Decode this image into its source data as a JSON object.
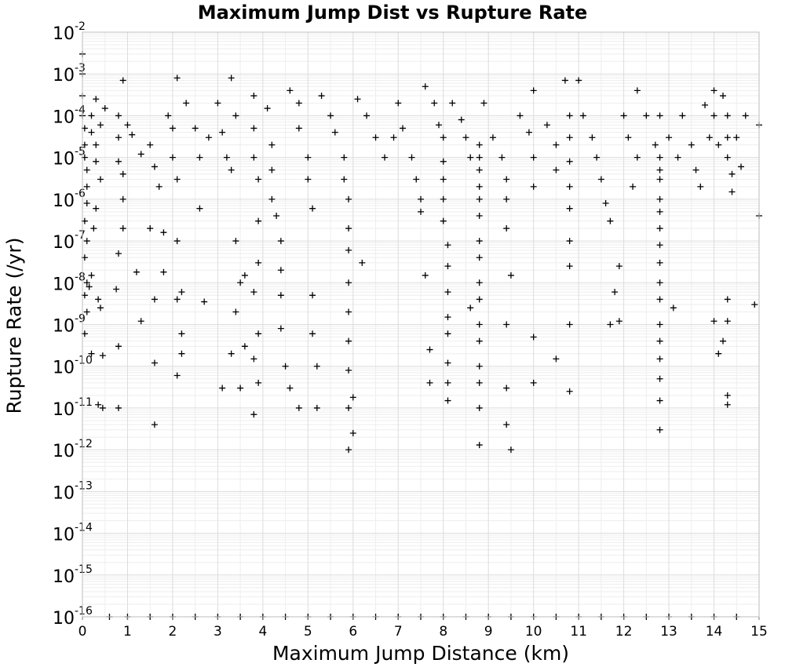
{
  "chart_data": {
    "type": "scatter",
    "title": "Maximum Jump Dist vs Rupture Rate",
    "xlabel": "Maximum Jump Distance (km)",
    "ylabel": "Rupture Rate (/yr)",
    "xlim": [
      0,
      15
    ],
    "ylim": [
      1e-16,
      0.01
    ],
    "yscale": "log",
    "grid": true,
    "marker": "plus",
    "marker_color": "#000000",
    "xticks": [
      "0",
      "1",
      "2",
      "3",
      "4",
      "5",
      "6",
      "7",
      "8",
      "9",
      "10",
      "11",
      "12",
      "13",
      "14",
      "15"
    ],
    "yticks": [
      {
        "base": "10",
        "exp": "-2"
      },
      {
        "base": "10",
        "exp": "-3"
      },
      {
        "base": "10",
        "exp": "-4"
      },
      {
        "base": "10",
        "exp": "-5"
      },
      {
        "base": "10",
        "exp": "-6"
      },
      {
        "base": "10",
        "exp": "-7"
      },
      {
        "base": "10",
        "exp": "-8"
      },
      {
        "base": "10",
        "exp": "-9"
      },
      {
        "base": "10",
        "exp": "-10"
      },
      {
        "base": "10",
        "exp": "-11"
      },
      {
        "base": "10",
        "exp": "-12"
      },
      {
        "base": "10",
        "exp": "-13"
      },
      {
        "base": "10",
        "exp": "-14"
      },
      {
        "base": "10",
        "exp": "-15"
      },
      {
        "base": "10",
        "exp": "-16"
      }
    ],
    "points": [
      [
        0.0,
        0.003
      ],
      [
        0.0,
        0.001
      ],
      [
        0.0,
        0.0003
      ],
      [
        0.0,
        0.0001
      ],
      [
        0.05,
        5e-05
      ],
      [
        0.05,
        2e-05
      ],
      [
        0.05,
        1e-05
      ],
      [
        0.1,
        5e-06
      ],
      [
        0.1,
        2e-06
      ],
      [
        0.1,
        8e-07
      ],
      [
        0.05,
        3e-07
      ],
      [
        0.1,
        1e-07
      ],
      [
        0.05,
        4e-08
      ],
      [
        0.1,
        1e-08
      ],
      [
        0.05,
        5e-09
      ],
      [
        0.1,
        2e-09
      ],
      [
        0.05,
        6e-10
      ],
      [
        0.2,
        2e-10
      ],
      [
        0.35,
        1.2e-11
      ],
      [
        0.45,
        1e-11
      ],
      [
        0.8,
        1e-11
      ],
      [
        0.2,
        4e-05
      ],
      [
        0.3,
        8e-06
      ],
      [
        0.3,
        2e-05
      ],
      [
        0.4,
        6e-05
      ],
      [
        0.2,
        0.0001
      ],
      [
        0.3,
        0.00025
      ],
      [
        0.5,
        0.00015
      ],
      [
        0.4,
        3e-06
      ],
      [
        0.3,
        6e-07
      ],
      [
        0.25,
        2e-07
      ],
      [
        0.2,
        1.5e-08
      ],
      [
        0.35,
        4e-09
      ],
      [
        0.4,
        2.5e-09
      ],
      [
        0.45,
        1.8e-10
      ],
      [
        0.15,
        8e-09
      ],
      [
        0.8,
        3e-10
      ],
      [
        0.9,
        0.0007
      ],
      [
        0.8,
        0.0001
      ],
      [
        0.8,
        3e-05
      ],
      [
        0.8,
        8e-06
      ],
      [
        0.9,
        4e-06
      ],
      [
        0.9,
        1e-06
      ],
      [
        0.9,
        2e-07
      ],
      [
        0.8,
        5e-08
      ],
      [
        0.75,
        7e-09
      ],
      [
        1.0,
        6e-05
      ],
      [
        1.1,
        3.5e-05
      ],
      [
        1.3,
        1.2e-05
      ],
      [
        1.2,
        1.8e-08
      ],
      [
        1.3,
        1.2e-09
      ],
      [
        1.5,
        2e-05
      ],
      [
        1.6,
        6e-06
      ],
      [
        1.7,
        2e-06
      ],
      [
        1.5,
        2e-07
      ],
      [
        1.6,
        4e-09
      ],
      [
        1.6,
        1.2e-10
      ],
      [
        1.6,
        4e-12
      ],
      [
        1.8,
        1.6e-07
      ],
      [
        1.8,
        1.8e-08
      ],
      [
        1.9,
        0.0001
      ],
      [
        2.0,
        5e-05
      ],
      [
        2.0,
        1e-05
      ],
      [
        2.1,
        3e-06
      ],
      [
        2.1,
        1e-07
      ],
      [
        2.2,
        6e-09
      ],
      [
        2.1,
        4e-09
      ],
      [
        2.2,
        6e-10
      ],
      [
        2.2,
        2e-10
      ],
      [
        2.1,
        6e-11
      ],
      [
        2.1,
        0.0008
      ],
      [
        2.3,
        0.0002
      ],
      [
        2.5,
        5e-05
      ],
      [
        2.6,
        1e-05
      ],
      [
        2.8,
        3e-05
      ],
      [
        2.6,
        6e-07
      ],
      [
        2.7,
        3.5e-09
      ],
      [
        3.0,
        0.0002
      ],
      [
        3.1,
        4e-05
      ],
      [
        3.2,
        1e-05
      ],
      [
        3.3,
        5e-06
      ],
      [
        3.3,
        0.0008
      ],
      [
        3.4,
        0.0001
      ],
      [
        3.4,
        1e-07
      ],
      [
        3.5,
        1e-08
      ],
      [
        3.4,
        2e-09
      ],
      [
        3.3,
        2e-10
      ],
      [
        3.1,
        3e-11
      ],
      [
        3.6,
        1.5e-08
      ],
      [
        3.6,
        3e-10
      ],
      [
        3.5,
        3e-11
      ],
      [
        3.8,
        0.0003
      ],
      [
        3.8,
        5e-05
      ],
      [
        3.8,
        1e-05
      ],
      [
        3.9,
        3e-06
      ],
      [
        3.9,
        3e-07
      ],
      [
        3.9,
        3e-08
      ],
      [
        3.8,
        6e-09
      ],
      [
        3.9,
        6e-10
      ],
      [
        3.8,
        1.5e-10
      ],
      [
        3.8,
        7e-12
      ],
      [
        3.9,
        4e-11
      ],
      [
        4.1,
        0.00015
      ],
      [
        4.2,
        2e-05
      ],
      [
        4.2,
        5e-06
      ],
      [
        4.2,
        1e-06
      ],
      [
        4.3,
        4e-07
      ],
      [
        4.4,
        1e-07
      ],
      [
        4.4,
        2e-08
      ],
      [
        4.4,
        5e-09
      ],
      [
        4.4,
        8e-10
      ],
      [
        4.5,
        1e-10
      ],
      [
        4.6,
        3e-11
      ],
      [
        4.6,
        0.0004
      ],
      [
        4.8,
        0.0002
      ],
      [
        4.8,
        5e-05
      ],
      [
        5.0,
        1e-05
      ],
      [
        5.0,
        3e-06
      ],
      [
        5.1,
        6e-07
      ],
      [
        5.1,
        5e-09
      ],
      [
        5.1,
        6e-10
      ],
      [
        5.2,
        1e-10
      ],
      [
        5.2,
        1e-11
      ],
      [
        4.8,
        1e-11
      ],
      [
        5.3,
        0.0003
      ],
      [
        5.5,
        0.0001
      ],
      [
        5.6,
        4e-05
      ],
      [
        5.8,
        1e-05
      ],
      [
        5.8,
        3e-06
      ],
      [
        5.9,
        1e-06
      ],
      [
        5.9,
        2e-07
      ],
      [
        5.9,
        6e-08
      ],
      [
        5.9,
        1e-08
      ],
      [
        5.9,
        2e-09
      ],
      [
        5.9,
        4e-10
      ],
      [
        5.9,
        8e-11
      ],
      [
        5.9,
        1e-11
      ],
      [
        5.9,
        1e-12
      ],
      [
        6.0,
        2.5e-12
      ],
      [
        6.0,
        1.8e-11
      ],
      [
        6.1,
        0.00025
      ],
      [
        6.2,
        3e-08
      ],
      [
        6.3,
        0.0001
      ],
      [
        6.5,
        3e-05
      ],
      [
        6.7,
        1e-05
      ],
      [
        6.9,
        3e-05
      ],
      [
        7.0,
        0.0002
      ],
      [
        7.1,
        5e-05
      ],
      [
        7.3,
        1e-05
      ],
      [
        7.4,
        3e-06
      ],
      [
        7.5,
        1e-06
      ],
      [
        7.5,
        5e-07
      ],
      [
        7.6,
        1.5e-08
      ],
      [
        7.7,
        2.5e-10
      ],
      [
        7.7,
        4e-11
      ],
      [
        7.6,
        0.0005
      ],
      [
        7.8,
        0.0002
      ],
      [
        7.9,
        6e-05
      ],
      [
        8.0,
        3e-05
      ],
      [
        8.0,
        8e-06
      ],
      [
        8.0,
        3e-06
      ],
      [
        8.0,
        1e-06
      ],
      [
        8.0,
        3e-07
      ],
      [
        8.1,
        8e-08
      ],
      [
        8.1,
        2.5e-08
      ],
      [
        8.1,
        6e-09
      ],
      [
        8.1,
        1.5e-09
      ],
      [
        8.1,
        6e-10
      ],
      [
        8.1,
        1.2e-10
      ],
      [
        8.1,
        4e-11
      ],
      [
        8.1,
        1.5e-11
      ],
      [
        8.2,
        0.0002
      ],
      [
        8.4,
        8e-05
      ],
      [
        8.5,
        3e-05
      ],
      [
        8.6,
        1e-05
      ],
      [
        8.8,
        2e-05
      ],
      [
        8.8,
        1e-05
      ],
      [
        8.8,
        5e-06
      ],
      [
        8.8,
        2e-06
      ],
      [
        8.8,
        1e-06
      ],
      [
        8.8,
        4e-07
      ],
      [
        8.8,
        1e-07
      ],
      [
        8.8,
        4e-08
      ],
      [
        8.8,
        1e-08
      ],
      [
        8.8,
        4e-09
      ],
      [
        8.8,
        1e-09
      ],
      [
        8.8,
        4e-10
      ],
      [
        8.8,
        1e-10
      ],
      [
        8.8,
        4e-11
      ],
      [
        8.8,
        1e-11
      ],
      [
        8.8,
        1.3e-12
      ],
      [
        8.6,
        2.5e-09
      ],
      [
        8.9,
        0.0002
      ],
      [
        9.1,
        3e-05
      ],
      [
        9.3,
        1e-05
      ],
      [
        9.4,
        3e-06
      ],
      [
        9.4,
        1e-06
      ],
      [
        9.4,
        2e-07
      ],
      [
        9.5,
        1.5e-08
      ],
      [
        9.4,
        1e-09
      ],
      [
        9.4,
        3e-11
      ],
      [
        9.5,
        1e-12
      ],
      [
        9.4,
        4e-12
      ],
      [
        9.7,
        0.0001
      ],
      [
        9.9,
        4e-05
      ],
      [
        10.0,
        0.0004
      ],
      [
        10.0,
        1e-05
      ],
      [
        10.0,
        2e-06
      ],
      [
        10.0,
        5e-10
      ],
      [
        10.0,
        4e-11
      ],
      [
        10.3,
        6e-05
      ],
      [
        10.5,
        2e-05
      ],
      [
        10.5,
        5e-06
      ],
      [
        10.5,
        1.5e-10
      ],
      [
        10.7,
        0.0007
      ],
      [
        10.8,
        0.0001
      ],
      [
        10.8,
        3e-05
      ],
      [
        10.8,
        8e-06
      ],
      [
        10.8,
        2e-06
      ],
      [
        10.8,
        6e-07
      ],
      [
        10.8,
        1e-07
      ],
      [
        10.8,
        2.5e-08
      ],
      [
        10.8,
        1e-09
      ],
      [
        10.8,
        2.5e-11
      ],
      [
        11.0,
        0.0007
      ],
      [
        11.1,
        0.0001
      ],
      [
        11.3,
        3e-05
      ],
      [
        11.4,
        1e-05
      ],
      [
        11.5,
        3e-06
      ],
      [
        11.6,
        8e-07
      ],
      [
        11.7,
        3e-07
      ],
      [
        11.7,
        1e-09
      ],
      [
        11.8,
        6e-09
      ],
      [
        11.9,
        1.2e-09
      ],
      [
        11.9,
        2.5e-08
      ],
      [
        12.0,
        0.0001
      ],
      [
        12.1,
        3e-05
      ],
      [
        12.3,
        0.0004
      ],
      [
        12.3,
        1e-05
      ],
      [
        12.2,
        2e-06
      ],
      [
        12.5,
        0.0001
      ],
      [
        12.7,
        2e-05
      ],
      [
        12.8,
        1e-05
      ],
      [
        12.8,
        5e-06
      ],
      [
        12.8,
        3e-06
      ],
      [
        12.8,
        1e-06
      ],
      [
        12.8,
        5e-07
      ],
      [
        12.8,
        2e-07
      ],
      [
        12.8,
        8e-08
      ],
      [
        12.8,
        3e-08
      ],
      [
        12.8,
        1e-08
      ],
      [
        12.8,
        4e-09
      ],
      [
        12.8,
        1e-09
      ],
      [
        12.8,
        4e-10
      ],
      [
        12.8,
        1.5e-10
      ],
      [
        12.8,
        5e-11
      ],
      [
        12.8,
        1.5e-11
      ],
      [
        12.8,
        3e-12
      ],
      [
        12.8,
        0.0001
      ],
      [
        13.0,
        3e-05
      ],
      [
        13.1,
        2.5e-09
      ],
      [
        13.2,
        1e-05
      ],
      [
        13.3,
        0.0001
      ],
      [
        13.5,
        2e-05
      ],
      [
        13.6,
        5e-06
      ],
      [
        13.7,
        2e-06
      ],
      [
        13.8,
        0.00018
      ],
      [
        13.9,
        3e-05
      ],
      [
        14.0,
        0.0001
      ],
      [
        14.1,
        2e-05
      ],
      [
        14.0,
        0.0004
      ],
      [
        14.2,
        0.0003
      ],
      [
        14.3,
        0.0001
      ],
      [
        14.3,
        3e-05
      ],
      [
        14.3,
        1e-05
      ],
      [
        14.4,
        4e-06
      ],
      [
        14.4,
        1.5e-06
      ],
      [
        14.3,
        4e-09
      ],
      [
        14.3,
        1.2e-09
      ],
      [
        14.2,
        4e-10
      ],
      [
        14.1,
        2e-10
      ],
      [
        14.0,
        1.2e-09
      ],
      [
        14.3,
        2e-11
      ],
      [
        14.3,
        1.2e-11
      ],
      [
        14.5,
        3e-05
      ],
      [
        14.6,
        6e-06
      ],
      [
        14.7,
        0.0001
      ],
      [
        14.9,
        3e-09
      ],
      [
        15.0,
        4e-07
      ],
      [
        15.0,
        6e-05
      ],
      [
        0.6,
        1e-16
      ],
      [
        1.0,
        1e-16
      ],
      [
        1.5,
        1e-16
      ],
      [
        2.0,
        1e-16
      ],
      [
        2.5,
        1e-16
      ],
      [
        3.0,
        1e-16
      ],
      [
        3.5,
        1e-16
      ],
      [
        4.0,
        1e-16
      ],
      [
        4.5,
        1e-16
      ],
      [
        5.0,
        1e-16
      ],
      [
        5.5,
        1e-16
      ],
      [
        6.0,
        1e-16
      ],
      [
        6.5,
        1e-16
      ],
      [
        7.0,
        1e-16
      ],
      [
        7.5,
        1e-16
      ],
      [
        8.0,
        1e-16
      ],
      [
        8.5,
        1e-16
      ],
      [
        9.0,
        1e-16
      ],
      [
        9.5,
        1e-16
      ],
      [
        10.0,
        1e-16
      ],
      [
        10.5,
        1e-16
      ],
      [
        11.0,
        1e-16
      ],
      [
        11.5,
        1e-16
      ],
      [
        12.0,
        1e-16
      ],
      [
        12.5,
        1e-16
      ],
      [
        13.0,
        1e-16
      ],
      [
        13.5,
        1e-16
      ],
      [
        14.0,
        1e-16
      ],
      [
        14.5,
        1e-16
      ]
    ]
  }
}
